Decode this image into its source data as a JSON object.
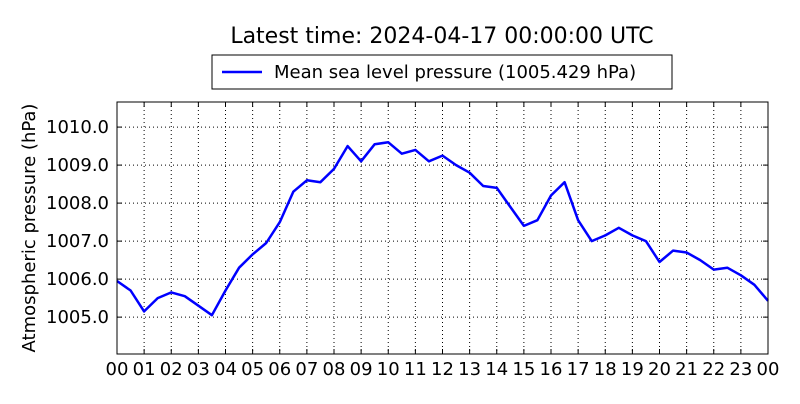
{
  "chart_data": {
    "type": "line",
    "title": "Latest time: 2024-04-17 00:00:00 UTC",
    "ylabel": "Atmospheric pressure (hPa)",
    "xlabel": "",
    "xlim": [
      0,
      24
    ],
    "ylim": [
      1004.03,
      1010.66
    ],
    "grid": true,
    "legend_placement": "top-center-outside",
    "xtick_labels": [
      "00",
      "01",
      "02",
      "03",
      "04",
      "05",
      "06",
      "07",
      "08",
      "09",
      "10",
      "11",
      "12",
      "13",
      "14",
      "15",
      "16",
      "17",
      "18",
      "19",
      "20",
      "21",
      "22",
      "23",
      "00"
    ],
    "ytick_values": [
      1005.0,
      1006.0,
      1007.0,
      1008.0,
      1009.0,
      1010.0
    ],
    "ytick_labels": [
      "1005.0",
      "1006.0",
      "1007.0",
      "1008.0",
      "1009.0",
      "1010.0"
    ],
    "series": [
      {
        "name": "Mean sea level pressure (1005.429 hPa)",
        "color": "#0000ff",
        "x": [
          0,
          0.5,
          1,
          1.5,
          2,
          2.5,
          3,
          3.5,
          4,
          4.5,
          5,
          5.5,
          6,
          6.5,
          7,
          7.5,
          8,
          8.5,
          9,
          9.5,
          10,
          10.5,
          11,
          11.5,
          12,
          12.5,
          13,
          13.5,
          14,
          14.5,
          15,
          15.5,
          16,
          16.5,
          17,
          17.5,
          18,
          18.5,
          19,
          19.5,
          20,
          20.5,
          21,
          21.5,
          22,
          22.5,
          23,
          23.5,
          24
        ],
        "y": [
          1005.95,
          1005.7,
          1005.15,
          1005.5,
          1005.65,
          1005.55,
          1005.3,
          1005.05,
          1005.7,
          1006.3,
          1006.65,
          1006.95,
          1007.5,
          1008.3,
          1008.6,
          1008.55,
          1008.9,
          1009.5,
          1009.1,
          1009.55,
          1009.6,
          1009.3,
          1009.4,
          1009.1,
          1009.25,
          1009.0,
          1008.8,
          1008.45,
          1008.4,
          1007.9,
          1007.4,
          1007.55,
          1008.2,
          1008.55,
          1007.55,
          1007.0,
          1007.15,
          1007.35,
          1007.15,
          1007.0,
          1006.45,
          1006.75,
          1006.7,
          1006.5,
          1006.25,
          1006.3,
          1006.1,
          1005.85,
          1005.429
        ]
      }
    ]
  }
}
